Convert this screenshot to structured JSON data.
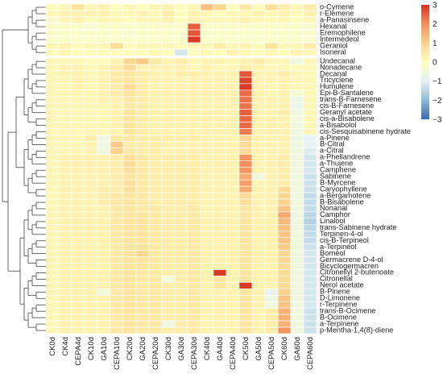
{
  "chart_data": {
    "type": "heatmap",
    "title": "",
    "samples": [
      "CK0d",
      "CK4d",
      "CEPA4d",
      "CK10d",
      "GA10d",
      "CEPA10d",
      "CK20d",
      "GA20d",
      "CEPA20d",
      "CK30d",
      "GA30d",
      "CEPA30d",
      "CK40d",
      "GA40d",
      "CEPA40d",
      "CK50d",
      "GA50d",
      "CEPA50d",
      "CK60d",
      "GA60d",
      "CEPA60d"
    ],
    "compounds": [
      "o-Cymene",
      "r-Elemene",
      "a-Panasinsene",
      "Hexanal",
      "Eremophilene",
      "Intermedeol",
      "Geraniol",
      "Isoneral",
      "Undecanal",
      "Nonadecane",
      "Decanal",
      "Tricyclene",
      "Humulene",
      "Epi-B-Santalene",
      "trans-B-Farnesene",
      "cis-B-Farnesene",
      "Geranyl acetate",
      "cis-a-Bisabolene",
      "a-Bisabolol",
      "cis-Sesquisabinene hydrate",
      "a-Pinene",
      "B-Citral",
      "a-Citral",
      "a-Phellandrene",
      "a-Thujene",
      "Camphene",
      "Sabinene",
      "B-Myrcene",
      "Caryophyllene",
      "a-Bergamotene",
      "B-Bisabolene",
      "Nonanal",
      "Camphor",
      "Linalool",
      "trans-Sabinene hydrate",
      "Terpinen-4-ol",
      "cis-B-Terpineol",
      "a-Terpineol",
      "Borneol",
      "Germacrene D-4-ol",
      "Bicyclogermacren",
      "Citronellyl 2-butenoate",
      "Citronellal",
      "Nerol acetate",
      "B-Pinene",
      "D-Limonene",
      "r-Terpinene",
      "trans-B-Ocimene",
      "B-Ocimene",
      "a-Terpinene",
      "p-Mentha-1,4(8)-diene"
    ],
    "z_range": [
      -3,
      3
    ],
    "colorbar": {
      "ticks": [
        3,
        2,
        1,
        0,
        -1,
        -2,
        -3
      ],
      "colors": [
        "#3a6ab0",
        "#8fbad6",
        "#e6f2f4",
        "#ffffbf",
        "#fbd38c",
        "#f48f5c",
        "#d7301f"
      ]
    },
    "values": [
      [
        0.1,
        0.2,
        0.6,
        0.2,
        0.3,
        0.1,
        0.2,
        0.1,
        0.2,
        0.3,
        0.1,
        0.2,
        1.3,
        0.9,
        0.1,
        0.5,
        0.1,
        0.7,
        0.4,
        0.2,
        0.4
      ],
      [
        0.2,
        0.3,
        0.3,
        0.3,
        0.3,
        0.2,
        0.2,
        0.3,
        0.2,
        0.4,
        0.1,
        0.3,
        0.2,
        0.1,
        0.2,
        0.2,
        0.3,
        0.2,
        0.3,
        0.1,
        0.3
      ],
      [
        -0.3,
        0.2,
        0.3,
        0.1,
        0.2,
        0.2,
        0.1,
        0.2,
        0.2,
        0.3,
        0.1,
        0.3,
        0.2,
        0.2,
        0.2,
        0.3,
        0.2,
        0.2,
        0.2,
        0.1,
        0.2
      ],
      [
        -0.2,
        -0.2,
        -0.2,
        -0.3,
        -0.2,
        -0.2,
        -0.2,
        -0.2,
        -0.2,
        -0.2,
        -0.2,
        2.5,
        -0.2,
        -0.2,
        -0.2,
        -0.2,
        -0.2,
        -0.2,
        -0.2,
        -0.2,
        -0.3
      ],
      [
        -0.2,
        -0.2,
        -0.2,
        -0.2,
        -0.2,
        -0.2,
        -0.3,
        -0.2,
        -0.2,
        -0.2,
        -0.2,
        2.6,
        -0.2,
        -0.2,
        -0.2,
        -0.2,
        -0.2,
        -0.2,
        -0.2,
        -0.2,
        -0.3
      ],
      [
        -0.2,
        -0.2,
        -0.2,
        -0.2,
        -0.2,
        -0.2,
        -0.2,
        -0.2,
        -0.2,
        -0.2,
        -0.2,
        2.9,
        -0.2,
        -0.2,
        -0.2,
        -0.2,
        -0.2,
        -0.2,
        -0.2,
        -0.2,
        -0.3
      ],
      [
        0.2,
        0.3,
        0.1,
        0.2,
        0.2,
        0.8,
        0.1,
        0.2,
        0.2,
        0.2,
        0.1,
        0.2,
        0.2,
        0.4,
        0.2,
        0.3,
        0.1,
        0.6,
        0.2,
        0.2,
        0.4
      ],
      [
        0.1,
        0.2,
        0.1,
        0.1,
        0.1,
        0.1,
        0.1,
        0.1,
        0.2,
        0.1,
        -1.2,
        0.1,
        0.2,
        0.1,
        0.3,
        0.2,
        0.1,
        0.2,
        0.1,
        0.3,
        0.2
      ],
      [
        0.2,
        0.2,
        0.2,
        0.1,
        0.1,
        0.3,
        0.9,
        1.1,
        0.5,
        0.3,
        0.4,
        0.2,
        0.3,
        0.3,
        0.2,
        0.3,
        0.4,
        0.2,
        0.2,
        -0.6,
        0.2
      ],
      [
        0.2,
        0.3,
        0.3,
        0.2,
        0.3,
        0.4,
        0.8,
        0.3,
        0.3,
        0.3,
        0.3,
        0.2,
        0.3,
        0.2,
        0.2,
        0.4,
        0.3,
        0.2,
        0.2,
        0.1,
        0.2
      ],
      [
        0.2,
        0.3,
        0.3,
        0.2,
        0.3,
        0.5,
        0.6,
        0.4,
        0.3,
        0.3,
        0.4,
        0.4,
        0.3,
        0.3,
        0.3,
        2.6,
        0.3,
        0.3,
        0.4,
        0.2,
        0.2
      ],
      [
        0.2,
        0.2,
        0.3,
        0.2,
        0.3,
        0.5,
        0.6,
        0.4,
        0.3,
        0.3,
        0.3,
        0.3,
        0.3,
        0.3,
        0.3,
        2.8,
        0.3,
        0.3,
        0.3,
        0.2,
        0.2
      ],
      [
        0.2,
        0.2,
        0.3,
        0.2,
        0.3,
        0.4,
        0.8,
        0.4,
        0.3,
        0.3,
        0.3,
        0.3,
        0.3,
        0.3,
        0.3,
        2.9,
        0.3,
        0.2,
        0.3,
        0.2,
        0.2
      ],
      [
        0.2,
        0.2,
        0.2,
        0.2,
        0.3,
        0.4,
        0.6,
        0.4,
        0.3,
        0.3,
        0.3,
        0.3,
        0.3,
        0.3,
        0.3,
        2.4,
        0.3,
        0.2,
        0.3,
        -0.4,
        0.2
      ],
      [
        0.2,
        0.2,
        0.2,
        0.2,
        0.3,
        0.3,
        0.5,
        0.4,
        0.3,
        0.3,
        0.3,
        0.3,
        0.3,
        0.3,
        0.3,
        2.3,
        0.3,
        0.3,
        0.3,
        -0.8,
        0.2
      ],
      [
        0.2,
        0.2,
        0.2,
        0.2,
        0.2,
        0.3,
        0.5,
        0.4,
        0.3,
        0.3,
        0.3,
        0.3,
        0.3,
        0.3,
        0.3,
        2.3,
        0.3,
        0.3,
        0.3,
        -0.8,
        0.2
      ],
      [
        0.2,
        0.2,
        0.2,
        0.2,
        0.2,
        0.3,
        0.6,
        0.4,
        0.3,
        0.3,
        0.3,
        0.3,
        0.3,
        0.3,
        0.3,
        2.5,
        0.3,
        0.3,
        0.4,
        -0.6,
        0.2
      ],
      [
        0.2,
        0.2,
        0.2,
        0.2,
        0.2,
        0.3,
        0.6,
        0.4,
        0.3,
        0.3,
        0.3,
        0.3,
        0.3,
        0.3,
        0.3,
        2.4,
        0.3,
        0.3,
        0.3,
        -0.5,
        0.2
      ],
      [
        0.2,
        0.2,
        0.2,
        0.2,
        0.2,
        0.3,
        0.6,
        0.4,
        0.3,
        0.3,
        0.3,
        0.3,
        0.3,
        0.3,
        0.3,
        2.4,
        0.3,
        0.3,
        0.3,
        -0.6,
        0.2
      ],
      [
        0.2,
        0.2,
        0.2,
        0.2,
        0.2,
        0.3,
        0.6,
        0.4,
        0.3,
        0.3,
        0.3,
        0.3,
        0.3,
        0.3,
        0.3,
        2.2,
        0.3,
        0.3,
        0.3,
        -0.6,
        0.2
      ],
      [
        0.2,
        0.2,
        0.2,
        0.4,
        -0.6,
        0.5,
        0.5,
        0.4,
        0.4,
        0.4,
        0.4,
        0.4,
        0.3,
        0.3,
        0.3,
        0.9,
        0.3,
        0.3,
        0.3,
        -0.7,
        -1.0
      ],
      [
        0.2,
        0.2,
        0.2,
        0.3,
        -0.7,
        1.1,
        0.4,
        0.4,
        0.4,
        0.3,
        0.3,
        0.3,
        0.3,
        0.3,
        0.3,
        0.8,
        0.3,
        0.3,
        0.3,
        -0.6,
        -1.0
      ],
      [
        0.2,
        0.2,
        0.2,
        0.3,
        -0.6,
        1.0,
        0.5,
        0.4,
        0.4,
        0.3,
        0.3,
        0.3,
        0.3,
        0.3,
        0.3,
        0.8,
        0.3,
        0.3,
        0.3,
        -0.6,
        -1.1
      ],
      [
        0.2,
        0.3,
        0.3,
        0.3,
        0.3,
        0.4,
        0.7,
        0.5,
        0.4,
        0.4,
        0.4,
        0.4,
        0.3,
        0.3,
        0.3,
        1.9,
        0.3,
        0.3,
        0.4,
        -0.6,
        -1.2
      ],
      [
        0.2,
        0.3,
        0.3,
        0.3,
        0.3,
        0.4,
        0.8,
        0.5,
        0.4,
        0.4,
        0.4,
        0.4,
        0.3,
        0.3,
        0.3,
        2.0,
        0.3,
        0.3,
        0.4,
        -0.6,
        -1.2
      ],
      [
        0.2,
        0.3,
        0.3,
        0.3,
        0.3,
        0.4,
        0.7,
        0.5,
        0.4,
        0.4,
        0.4,
        0.4,
        0.3,
        0.3,
        0.3,
        1.9,
        0.3,
        0.3,
        0.4,
        -0.6,
        -1.2
      ],
      [
        0.2,
        0.3,
        0.3,
        0.3,
        0.3,
        0.4,
        0.6,
        0.5,
        0.4,
        0.4,
        0.4,
        0.4,
        0.3,
        0.3,
        0.3,
        1.6,
        -0.6,
        0.3,
        0.4,
        -0.6,
        -1.3
      ],
      [
        0.2,
        0.3,
        0.3,
        0.3,
        0.3,
        0.4,
        0.7,
        0.5,
        0.4,
        0.4,
        0.4,
        0.4,
        0.3,
        0.3,
        0.3,
        1.8,
        0.3,
        0.3,
        0.4,
        -0.6,
        -1.3
      ],
      [
        0.2,
        0.3,
        0.3,
        0.3,
        0.4,
        0.4,
        0.7,
        0.5,
        0.4,
        0.4,
        0.4,
        0.4,
        0.3,
        0.3,
        0.3,
        1.6,
        0.3,
        0.3,
        0.8,
        -0.6,
        -1.3
      ],
      [
        0.2,
        0.3,
        0.3,
        0.3,
        0.4,
        0.5,
        0.6,
        0.5,
        0.4,
        0.4,
        0.4,
        0.4,
        0.3,
        0.3,
        0.3,
        0.8,
        0.3,
        0.3,
        0.9,
        -0.6,
        -1.4
      ],
      [
        0.2,
        0.3,
        0.3,
        0.3,
        0.4,
        0.5,
        0.6,
        0.5,
        0.4,
        0.4,
        0.4,
        0.4,
        0.3,
        0.3,
        0.3,
        0.7,
        0.3,
        0.3,
        1.0,
        -0.6,
        -1.4
      ],
      [
        0.2,
        0.3,
        0.3,
        0.3,
        0.3,
        0.5,
        0.6,
        0.5,
        0.5,
        0.4,
        0.4,
        0.5,
        0.3,
        0.3,
        0.3,
        0.6,
        0.3,
        0.3,
        1.2,
        -0.6,
        -1.4
      ],
      [
        0.2,
        0.3,
        0.3,
        0.3,
        0.3,
        0.5,
        0.6,
        0.6,
        0.5,
        0.4,
        0.4,
        0.5,
        0.3,
        0.3,
        0.3,
        0.6,
        0.3,
        0.3,
        1.6,
        -0.6,
        -1.5
      ],
      [
        0.2,
        0.3,
        0.3,
        0.3,
        0.3,
        0.5,
        0.6,
        0.6,
        0.5,
        0.4,
        0.4,
        0.5,
        0.3,
        0.3,
        0.3,
        0.6,
        0.3,
        0.3,
        1.4,
        -0.6,
        -1.6
      ],
      [
        0.2,
        0.3,
        0.3,
        0.3,
        0.3,
        0.5,
        0.6,
        0.6,
        0.5,
        0.4,
        0.4,
        0.5,
        0.3,
        0.3,
        0.3,
        0.6,
        0.3,
        0.3,
        1.3,
        -0.6,
        -1.5
      ],
      [
        0.2,
        0.3,
        0.3,
        0.3,
        0.3,
        0.5,
        0.6,
        0.6,
        0.5,
        0.4,
        0.4,
        0.5,
        0.3,
        0.3,
        0.3,
        0.6,
        0.3,
        0.3,
        1.2,
        -0.6,
        -1.4
      ],
      [
        0.2,
        0.3,
        0.3,
        0.3,
        0.3,
        0.5,
        0.6,
        0.6,
        0.5,
        0.4,
        0.4,
        0.5,
        0.3,
        0.3,
        0.3,
        0.6,
        0.3,
        0.3,
        1.2,
        -0.6,
        -1.4
      ],
      [
        0.2,
        0.3,
        0.3,
        0.3,
        0.3,
        0.5,
        0.6,
        0.6,
        0.5,
        0.4,
        0.4,
        0.5,
        0.3,
        0.3,
        0.3,
        0.6,
        0.3,
        0.3,
        1.1,
        -0.6,
        -1.3
      ],
      [
        0.2,
        0.3,
        0.3,
        0.3,
        0.3,
        0.5,
        0.6,
        0.9,
        0.5,
        0.4,
        0.4,
        0.5,
        0.3,
        0.3,
        0.3,
        0.6,
        0.3,
        0.3,
        0.9,
        -0.6,
        -1.2
      ],
      [
        0.2,
        0.3,
        0.3,
        0.3,
        0.3,
        0.5,
        0.6,
        0.6,
        0.5,
        0.4,
        0.4,
        0.5,
        0.3,
        0.3,
        0.3,
        0.6,
        0.3,
        0.3,
        0.9,
        -0.6,
        -1.2
      ],
      [
        0.2,
        0.3,
        0.3,
        0.3,
        0.3,
        0.5,
        0.6,
        0.6,
        0.5,
        0.4,
        0.4,
        0.5,
        0.3,
        0.3,
        0.3,
        0.6,
        0.3,
        0.3,
        0.8,
        -0.6,
        -1.2
      ],
      [
        0.2,
        0.3,
        0.3,
        0.3,
        0.3,
        0.5,
        0.6,
        0.5,
        0.5,
        0.4,
        0.4,
        0.5,
        0.3,
        2.9,
        0.3,
        0.6,
        0.3,
        0.3,
        0.8,
        -0.6,
        -1.2
      ],
      [
        0.2,
        0.3,
        0.3,
        0.3,
        0.3,
        0.5,
        0.6,
        0.5,
        0.5,
        -0.5,
        0.4,
        0.5,
        0.3,
        0.6,
        0.3,
        0.6,
        0.3,
        0.3,
        0.8,
        -0.6,
        -1.2
      ],
      [
        0.2,
        0.3,
        0.3,
        0.3,
        0.3,
        0.5,
        0.6,
        0.5,
        0.5,
        0.4,
        0.4,
        0.5,
        0.3,
        0.6,
        0.3,
        2.9,
        0.3,
        0.3,
        0.8,
        -0.6,
        -1.2
      ],
      [
        0.2,
        0.3,
        0.3,
        0.3,
        -0.5,
        0.5,
        0.6,
        0.5,
        0.5,
        0.4,
        0.4,
        0.5,
        0.3,
        0.3,
        0.3,
        0.6,
        0.3,
        -0.9,
        1.0,
        -0.6,
        -1.2
      ],
      [
        0.2,
        0.3,
        0.3,
        0.3,
        0.3,
        0.5,
        0.6,
        0.5,
        0.5,
        0.4,
        0.4,
        0.5,
        0.3,
        0.3,
        0.3,
        0.6,
        0.3,
        -0.7,
        1.2,
        -0.6,
        -1.2
      ],
      [
        0.2,
        0.3,
        0.3,
        0.3,
        0.3,
        0.5,
        0.6,
        0.5,
        0.5,
        0.4,
        0.4,
        0.5,
        0.3,
        0.3,
        0.3,
        0.6,
        0.3,
        -0.6,
        1.2,
        -0.6,
        -1.2
      ],
      [
        0.2,
        0.3,
        0.3,
        0.3,
        0.3,
        0.5,
        0.6,
        0.5,
        0.5,
        0.4,
        0.4,
        0.5,
        0.3,
        0.3,
        0.3,
        0.6,
        0.3,
        0.4,
        1.5,
        -0.6,
        -1.3
      ],
      [
        0.2,
        0.3,
        0.3,
        0.3,
        0.3,
        0.5,
        0.6,
        0.5,
        0.5,
        0.4,
        0.4,
        0.5,
        0.3,
        0.3,
        0.3,
        0.6,
        0.3,
        0.4,
        1.5,
        -0.6,
        -1.3
      ],
      [
        0.2,
        0.3,
        0.3,
        0.3,
        0.3,
        0.5,
        0.6,
        0.5,
        0.5,
        -0.7,
        0.4,
        0.5,
        0.3,
        0.3,
        0.3,
        0.6,
        0.3,
        0.4,
        1.5,
        -0.6,
        -1.3
      ],
      [
        0.2,
        0.3,
        0.3,
        0.3,
        0.3,
        0.5,
        0.6,
        0.5,
        0.5,
        0.4,
        0.4,
        0.5,
        0.3,
        0.3,
        0.3,
        0.6,
        0.3,
        0.4,
        1.9,
        -0.6,
        -1.3
      ]
    ]
  }
}
